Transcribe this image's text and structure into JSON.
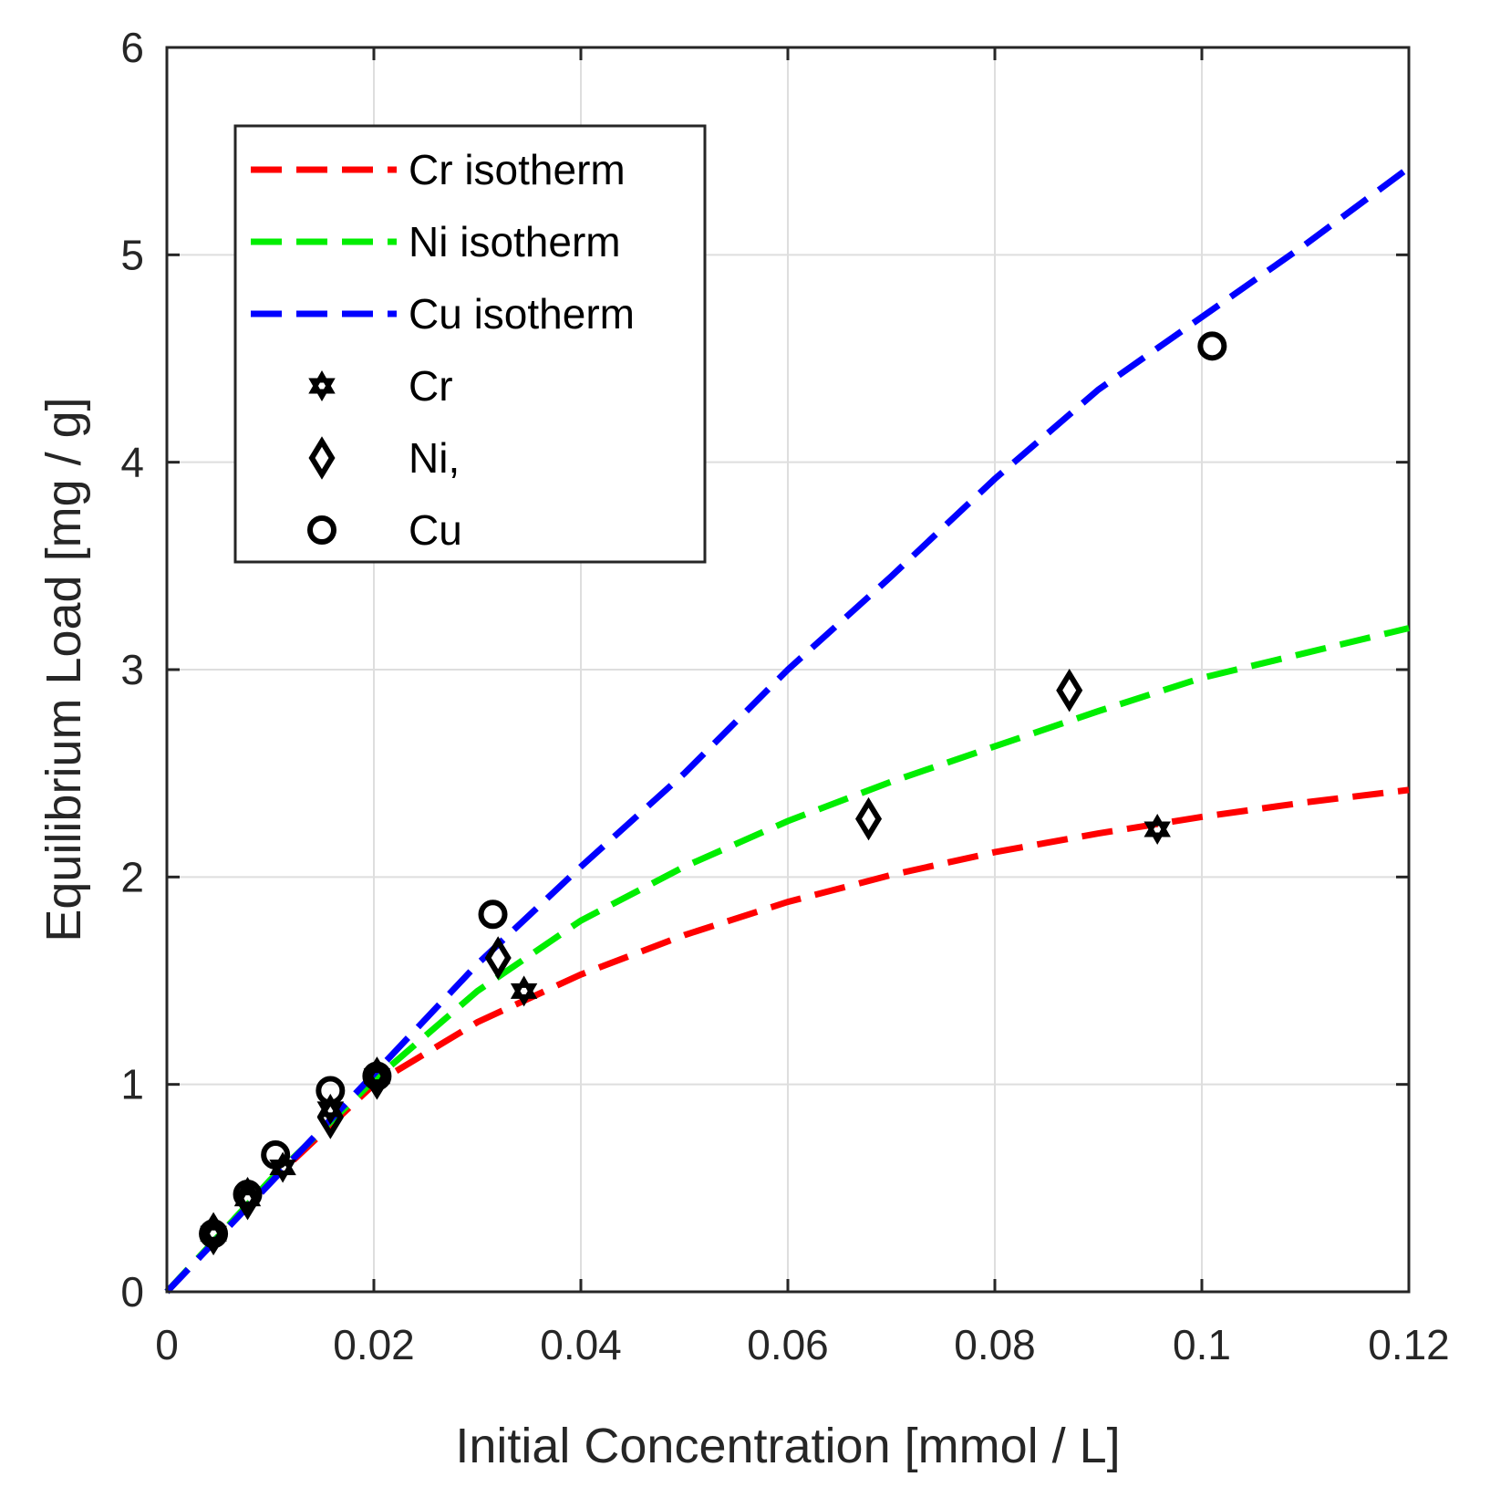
{
  "chart_data": {
    "type": "scatter",
    "title": "",
    "xlabel": "Initial Concentration [mmol / L]",
    "ylabel": "Equilibrium Load [mg / g]",
    "xlim": [
      0,
      0.12
    ],
    "ylim": [
      0,
      6
    ],
    "xticks": [
      0,
      0.02,
      0.04,
      0.06,
      0.08,
      0.1,
      0.12
    ],
    "xtick_labels": [
      "0",
      "0.02",
      "0.04",
      "0.06",
      "0.08",
      "0.1",
      "0.12"
    ],
    "yticks": [
      0,
      1,
      2,
      3,
      4,
      5,
      6
    ],
    "ytick_labels": [
      "0",
      "1",
      "2",
      "3",
      "4",
      "5",
      "6"
    ],
    "grid": true,
    "legend_position": "top-left",
    "colors": {
      "cr": "#ff0000",
      "ni": "#00ee00",
      "cu": "#0000ff",
      "marker": "#000000"
    },
    "lines": [
      {
        "name": "Cr isotherm",
        "style": "dashed",
        "color": "#ff0000",
        "x": [
          0,
          0.01,
          0.02,
          0.03,
          0.04,
          0.05,
          0.06,
          0.07,
          0.08,
          0.09,
          0.1,
          0.11,
          0.12
        ],
        "y": [
          0,
          0.53,
          1.0,
          1.3,
          1.53,
          1.72,
          1.88,
          2.01,
          2.12,
          2.21,
          2.29,
          2.36,
          2.42
        ]
      },
      {
        "name": "Ni isotherm",
        "style": "dashed",
        "color": "#00ee00",
        "x": [
          0,
          0.01,
          0.02,
          0.03,
          0.04,
          0.05,
          0.06,
          0.07,
          0.08,
          0.09,
          0.1,
          0.11,
          0.12
        ],
        "y": [
          0,
          0.54,
          1.02,
          1.45,
          1.79,
          2.05,
          2.27,
          2.46,
          2.63,
          2.8,
          2.96,
          3.08,
          3.2
        ]
      },
      {
        "name": "Cu isotherm",
        "style": "dashed",
        "color": "#0000ff",
        "x": [
          0,
          0.02,
          0.03,
          0.04,
          0.05,
          0.06,
          0.07,
          0.08,
          0.09,
          0.1,
          0.11,
          0.12
        ],
        "y": [
          0,
          1.05,
          1.58,
          2.05,
          2.5,
          3.0,
          3.45,
          3.92,
          4.35,
          4.7,
          5.05,
          5.42
        ]
      }
    ],
    "points": [
      {
        "name": "Cr",
        "marker": "hexagram",
        "x": [
          0.0045,
          0.0078,
          0.0112,
          0.0158,
          0.0203,
          0.0345,
          0.0957
        ],
        "y": [
          0.28,
          0.45,
          0.6,
          0.88,
          1.04,
          1.45,
          2.23
        ]
      },
      {
        "name": "Ni,",
        "marker": "diamond",
        "x": [
          0.0045,
          0.0078,
          0.0158,
          0.0203,
          0.032,
          0.0678,
          0.0872
        ],
        "y": [
          0.28,
          0.45,
          0.84,
          1.03,
          1.61,
          2.28,
          2.9
        ]
      },
      {
        "name": "Cu",
        "marker": "circle",
        "x": [
          0.0045,
          0.0078,
          0.0105,
          0.0158,
          0.0203,
          0.0315,
          0.101
        ],
        "y": [
          0.28,
          0.47,
          0.66,
          0.97,
          1.04,
          1.82,
          4.56
        ]
      }
    ]
  }
}
